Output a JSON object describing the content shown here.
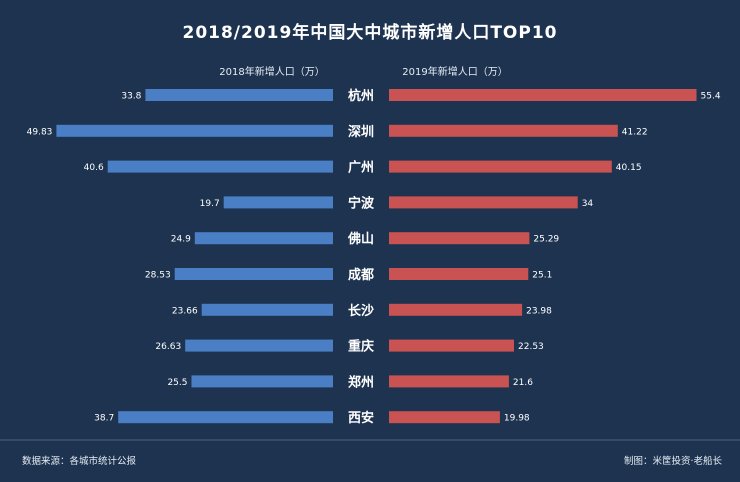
{
  "chart_data": {
    "type": "bar",
    "title": "2018/2019年中国大中城市新增人口TOP10",
    "categories": [
      "杭州",
      "深圳",
      "广州",
      "宁波",
      "佛山",
      "成都",
      "长沙",
      "重庆",
      "郑州",
      "西安"
    ],
    "series": [
      {
        "name": "2018年新增人口（万）",
        "values": [
          33.8,
          49.83,
          40.6,
          19.7,
          24.9,
          28.53,
          23.66,
          26.63,
          25.5,
          38.7
        ],
        "labels": [
          "33.8",
          "49.83",
          "40.6",
          "19.7",
          "24.9",
          "28.53",
          "23.66",
          "26.63",
          "25.5",
          "38.7"
        ],
        "color": "#4a7fc6"
      },
      {
        "name": "2019年新增人口（万）",
        "values": [
          55.4,
          41.22,
          40.15,
          34,
          25.29,
          25.1,
          23.98,
          22.53,
          21.6,
          19.98
        ],
        "labels": [
          "55.4",
          "41.22",
          "40.15",
          "34",
          "25.29",
          "25.1",
          "23.98",
          "22.53",
          "21.6",
          "19.98"
        ],
        "color": "#c85352"
      }
    ],
    "legend": "above each side",
    "grid": false
  },
  "footer": {
    "source": "数据来源：各城市统计公报",
    "credit": "制图：米筐投资·老船长"
  }
}
